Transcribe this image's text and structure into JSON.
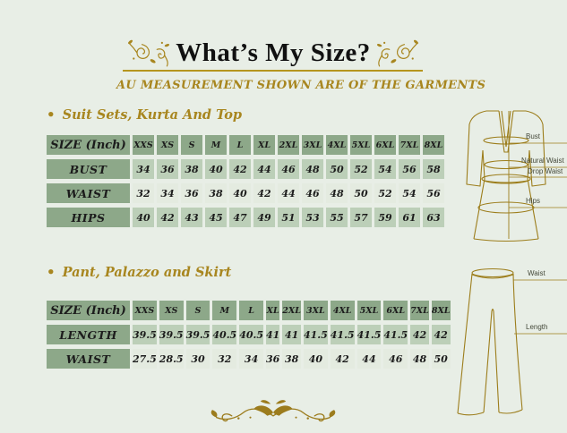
{
  "header": {
    "title": "What’s My Size?",
    "subtitle": "AU MEASUREMENT SHOWN ARE OF THE GARMENTS"
  },
  "icons": {
    "bullet": "•"
  },
  "chart_data": [
    {
      "type": "table",
      "title": "Suit Sets, Kurta And Top",
      "columns": [
        "SIZE (Inch)",
        "XXS",
        "XS",
        "S",
        "M",
        "L",
        "XL",
        "2XL",
        "3XL",
        "4XL",
        "5XL",
        "6XL",
        "7XL",
        "8XL"
      ],
      "rows": [
        {
          "label": "BUST",
          "values": [
            "34",
            "36",
            "38",
            "40",
            "42",
            "44",
            "46",
            "48",
            "50",
            "52",
            "54",
            "56",
            "58"
          ]
        },
        {
          "label": "WAIST",
          "values": [
            "32",
            "34",
            "36",
            "38",
            "40",
            "42",
            "44",
            "46",
            "48",
            "50",
            "52",
            "54",
            "56"
          ]
        },
        {
          "label": "HIPS",
          "values": [
            "40",
            "42",
            "43",
            "45",
            "47",
            "49",
            "51",
            "53",
            "55",
            "57",
            "59",
            "61",
            "63"
          ]
        }
      ]
    },
    {
      "type": "table",
      "title": "Pant, Palazzo and Skirt",
      "columns": [
        "SIZE (Inch)",
        "XXS",
        "XS",
        "S",
        "M",
        "L",
        "XL",
        "2XL",
        "3XL",
        "4XL",
        "5XL",
        "6XL",
        "7XL",
        "8XL"
      ],
      "rows": [
        {
          "label": "LENGTH",
          "values": [
            "39.5",
            "39.5",
            "39.5",
            "40.5",
            "40.5",
            "41",
            "41",
            "41.5",
            "41.5",
            "41.5",
            "41.5",
            "42",
            "42"
          ]
        },
        {
          "label": "WAIST",
          "values": [
            "27.5",
            "28.5",
            "30",
            "32",
            "34",
            "36",
            "38",
            "40",
            "42",
            "44",
            "46",
            "48",
            "50"
          ]
        }
      ]
    }
  ],
  "figures": {
    "kurta": {
      "labels": [
        "Bust",
        "Natural Waist",
        "Drop Waist",
        "Hips"
      ]
    },
    "pant": {
      "labels": [
        "Waist",
        "Length"
      ]
    }
  },
  "colors": {
    "background": "#e8eee6",
    "accent_gold": "#a8861f",
    "table_header_green": "#8da889",
    "table_row_green": "#bccfb8",
    "table_row_light": "#e4ebe0",
    "text_black": "#1c1c1c"
  }
}
